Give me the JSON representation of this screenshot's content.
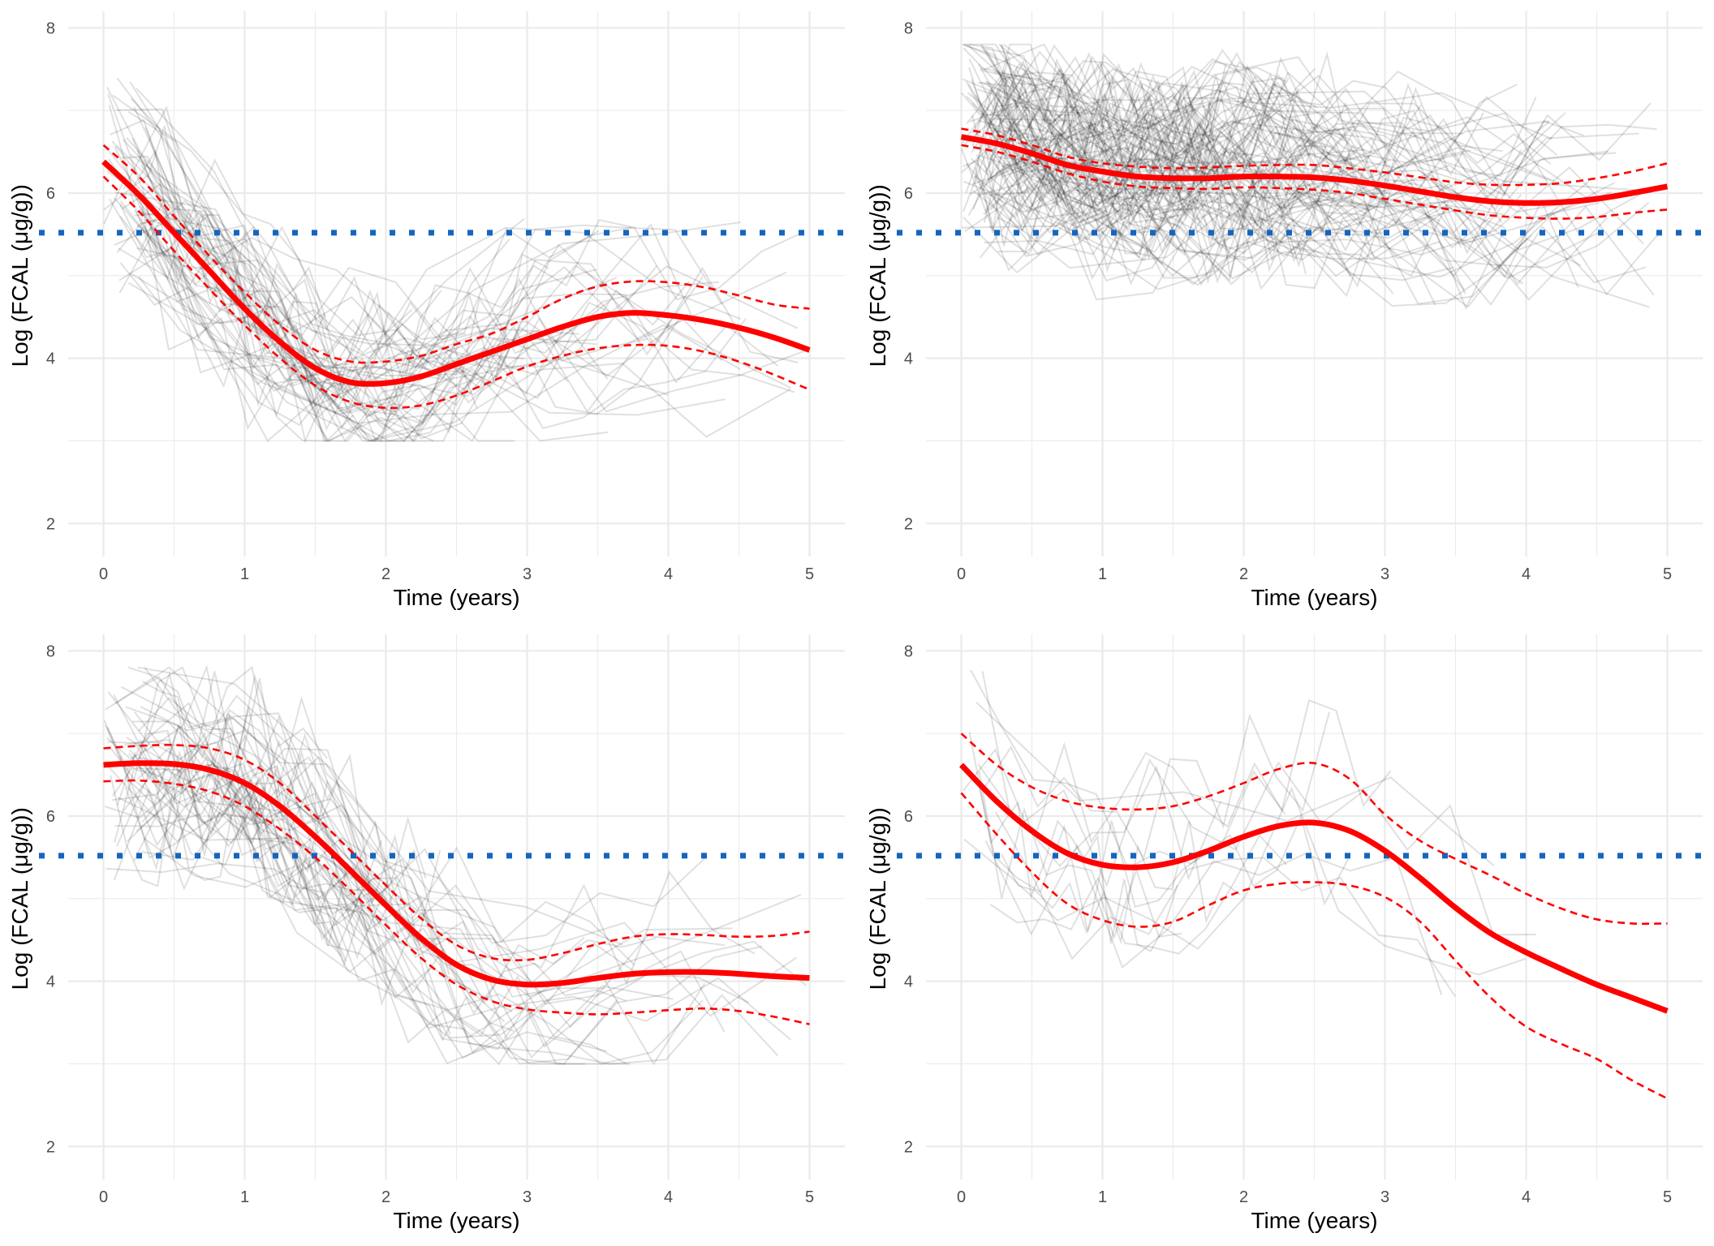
{
  "chart_data": [
    {
      "type": "line",
      "panel": "top-left",
      "xlabel": "Time (years)",
      "ylabel": "Log (FCAL (μg/g))",
      "xlim": [
        -0.25,
        5.25
      ],
      "ylim": [
        1.6,
        8.2
      ],
      "xticks": [
        0,
        1,
        2,
        3,
        4,
        5
      ],
      "yticks": [
        2,
        4,
        6,
        8
      ],
      "grid": true,
      "reference_line": {
        "y": 5.52,
        "style": "dotted",
        "color": "#1565c0"
      },
      "series": [
        {
          "role": "fit",
          "color": "#ff0000",
          "x": [
            0,
            0.25,
            0.5,
            0.75,
            1,
            1.25,
            1.5,
            1.75,
            2,
            2.25,
            2.5,
            2.75,
            3,
            3.25,
            3.5,
            3.75,
            4,
            4.25,
            4.5,
            4.75,
            5
          ],
          "y": [
            6.38,
            5.98,
            5.52,
            5.06,
            4.6,
            4.2,
            3.88,
            3.71,
            3.7,
            3.78,
            3.93,
            4.08,
            4.23,
            4.38,
            4.5,
            4.55,
            4.52,
            4.46,
            4.37,
            4.25,
            4.1
          ]
        },
        {
          "role": "ci-upper",
          "color": "#ff0000",
          "x": [
            0,
            0.25,
            0.5,
            0.75,
            1,
            1.25,
            1.5,
            1.75,
            2,
            2.25,
            2.5,
            2.75,
            3,
            3.25,
            3.5,
            3.75,
            4,
            4.25,
            4.5,
            4.75,
            5
          ],
          "y": [
            6.58,
            6.2,
            5.72,
            5.24,
            4.8,
            4.4,
            4.1,
            3.96,
            3.96,
            4.03,
            4.17,
            4.3,
            4.5,
            4.72,
            4.87,
            4.93,
            4.92,
            4.86,
            4.76,
            4.65,
            4.6
          ]
        },
        {
          "role": "ci-lower",
          "color": "#ff0000",
          "x": [
            0,
            0.25,
            0.5,
            0.75,
            1,
            1.25,
            1.5,
            1.75,
            2,
            2.25,
            2.5,
            2.75,
            3,
            3.25,
            3.5,
            3.75,
            4,
            4.25,
            4.5,
            4.75,
            5
          ],
          "y": [
            6.2,
            5.78,
            5.3,
            4.84,
            4.4,
            4.0,
            3.67,
            3.47,
            3.4,
            3.43,
            3.55,
            3.72,
            3.9,
            4.03,
            4.12,
            4.16,
            4.15,
            4.08,
            3.96,
            3.8,
            3.62
          ]
        }
      ]
    },
    {
      "type": "line",
      "panel": "top-right",
      "xlabel": "Time (years)",
      "ylabel": "Log (FCAL (μg/g))",
      "xlim": [
        -0.25,
        5.25
      ],
      "ylim": [
        1.6,
        8.2
      ],
      "xticks": [
        0,
        1,
        2,
        3,
        4,
        5
      ],
      "yticks": [
        2,
        4,
        6,
        8
      ],
      "grid": true,
      "reference_line": {
        "y": 5.52,
        "style": "dotted",
        "color": "#1565c0"
      },
      "series": [
        {
          "role": "fit",
          "color": "#ff0000",
          "x": [
            0,
            0.25,
            0.5,
            0.75,
            1,
            1.25,
            1.5,
            1.75,
            2,
            2.25,
            2.5,
            2.75,
            3,
            3.25,
            3.5,
            3.75,
            4,
            4.25,
            4.5,
            4.75,
            5
          ],
          "y": [
            6.68,
            6.6,
            6.48,
            6.34,
            6.26,
            6.2,
            6.18,
            6.18,
            6.2,
            6.2,
            6.19,
            6.15,
            6.09,
            6.02,
            5.95,
            5.9,
            5.88,
            5.89,
            5.93,
            6.0,
            6.08
          ]
        },
        {
          "role": "ci-upper",
          "color": "#ff0000",
          "x": [
            0,
            0.25,
            0.5,
            0.75,
            1,
            1.25,
            1.5,
            1.75,
            2,
            2.25,
            2.5,
            2.75,
            3,
            3.25,
            3.5,
            3.75,
            4,
            4.25,
            4.5,
            4.75,
            5
          ],
          "y": [
            6.78,
            6.7,
            6.58,
            6.44,
            6.36,
            6.32,
            6.3,
            6.31,
            6.33,
            6.34,
            6.34,
            6.3,
            6.25,
            6.19,
            6.13,
            6.1,
            6.1,
            6.12,
            6.18,
            6.26,
            6.36
          ]
        },
        {
          "role": "ci-lower",
          "color": "#ff0000",
          "x": [
            0,
            0.25,
            0.5,
            0.75,
            1,
            1.25,
            1.5,
            1.75,
            2,
            2.25,
            2.5,
            2.75,
            3,
            3.25,
            3.5,
            3.75,
            4,
            4.25,
            4.5,
            4.75,
            5
          ],
          "y": [
            6.58,
            6.5,
            6.38,
            6.24,
            6.14,
            6.08,
            6.06,
            6.05,
            6.07,
            6.06,
            6.04,
            6.0,
            5.93,
            5.86,
            5.79,
            5.73,
            5.7,
            5.69,
            5.71,
            5.76,
            5.8
          ]
        }
      ]
    },
    {
      "type": "line",
      "panel": "bottom-left",
      "xlabel": "Time (years)",
      "ylabel": "Log (FCAL (μg/g))",
      "xlim": [
        -0.25,
        5.25
      ],
      "ylim": [
        1.6,
        8.2
      ],
      "xticks": [
        0,
        1,
        2,
        3,
        4,
        5
      ],
      "yticks": [
        2,
        4,
        6,
        8
      ],
      "grid": true,
      "reference_line": {
        "y": 5.52,
        "style": "dotted",
        "color": "#1565c0"
      },
      "series": [
        {
          "role": "fit",
          "color": "#ff0000",
          "x": [
            0,
            0.25,
            0.5,
            0.75,
            1,
            1.25,
            1.5,
            1.75,
            2,
            2.25,
            2.5,
            2.75,
            3,
            3.25,
            3.5,
            3.75,
            4,
            4.25,
            4.5,
            4.75,
            5
          ],
          "y": [
            6.62,
            6.64,
            6.63,
            6.56,
            6.4,
            6.12,
            5.75,
            5.34,
            4.92,
            4.52,
            4.2,
            4.02,
            3.96,
            3.98,
            4.04,
            4.09,
            4.11,
            4.11,
            4.09,
            4.06,
            4.04
          ]
        },
        {
          "role": "ci-upper",
          "color": "#ff0000",
          "x": [
            0,
            0.25,
            0.5,
            0.75,
            1,
            1.25,
            1.5,
            1.75,
            2,
            2.25,
            2.5,
            2.75,
            3,
            3.25,
            3.5,
            3.75,
            4,
            4.25,
            4.5,
            4.75,
            5
          ],
          "y": [
            6.82,
            6.85,
            6.86,
            6.82,
            6.68,
            6.4,
            6.0,
            5.58,
            5.16,
            4.76,
            4.44,
            4.28,
            4.26,
            4.34,
            4.45,
            4.54,
            4.57,
            4.56,
            4.54,
            4.55,
            4.6
          ]
        },
        {
          "role": "ci-lower",
          "color": "#ff0000",
          "x": [
            0,
            0.25,
            0.5,
            0.75,
            1,
            1.25,
            1.5,
            1.75,
            2,
            2.25,
            2.5,
            2.75,
            3,
            3.25,
            3.5,
            3.75,
            4,
            4.25,
            4.5,
            4.75,
            5
          ],
          "y": [
            6.42,
            6.43,
            6.39,
            6.3,
            6.12,
            5.84,
            5.5,
            5.1,
            4.68,
            4.28,
            3.96,
            3.76,
            3.66,
            3.62,
            3.6,
            3.62,
            3.65,
            3.67,
            3.64,
            3.57,
            3.48
          ]
        }
      ]
    },
    {
      "type": "line",
      "panel": "bottom-right",
      "xlabel": "Time (years)",
      "ylabel": "Log (FCAL (μg/g))",
      "xlim": [
        -0.25,
        5.25
      ],
      "ylim": [
        1.6,
        8.2
      ],
      "xticks": [
        0,
        1,
        2,
        3,
        4,
        5
      ],
      "yticks": [
        2,
        4,
        6,
        8
      ],
      "grid": true,
      "reference_line": {
        "y": 5.52,
        "style": "dotted",
        "color": "#1565c0"
      },
      "series": [
        {
          "role": "fit",
          "color": "#ff0000",
          "x": [
            0,
            0.25,
            0.5,
            0.75,
            1,
            1.25,
            1.5,
            1.75,
            2,
            2.25,
            2.5,
            2.75,
            3,
            3.25,
            3.5,
            3.75,
            4,
            4.25,
            4.5,
            4.75,
            5
          ],
          "y": [
            6.62,
            6.18,
            5.82,
            5.55,
            5.41,
            5.38,
            5.44,
            5.58,
            5.75,
            5.88,
            5.92,
            5.82,
            5.58,
            5.25,
            4.89,
            4.58,
            4.35,
            4.15,
            3.96,
            3.8,
            3.64
          ]
        },
        {
          "role": "ci-upper",
          "color": "#ff0000",
          "x": [
            0,
            0.25,
            0.5,
            0.75,
            1,
            1.25,
            1.5,
            1.75,
            2,
            2.25,
            2.5,
            2.75,
            3,
            3.25,
            3.5,
            3.75,
            4,
            4.25,
            4.5,
            4.75,
            5
          ],
          "y": [
            7.0,
            6.62,
            6.35,
            6.18,
            6.1,
            6.08,
            6.12,
            6.24,
            6.4,
            6.57,
            6.64,
            6.45,
            6.02,
            5.7,
            5.48,
            5.28,
            5.06,
            4.88,
            4.75,
            4.7,
            4.7
          ]
        },
        {
          "role": "ci-lower",
          "color": "#ff0000",
          "x": [
            0,
            0.25,
            0.5,
            0.75,
            1,
            1.25,
            1.5,
            1.75,
            2,
            2.25,
            2.5,
            2.75,
            3,
            3.25,
            3.5,
            3.75,
            4,
            4.25,
            4.5,
            4.75,
            5
          ],
          "y": [
            6.28,
            5.78,
            5.32,
            4.94,
            4.74,
            4.66,
            4.72,
            4.92,
            5.1,
            5.18,
            5.2,
            5.16,
            5.02,
            4.72,
            4.25,
            3.8,
            3.45,
            3.24,
            3.06,
            2.8,
            2.58
          ]
        }
      ]
    }
  ]
}
